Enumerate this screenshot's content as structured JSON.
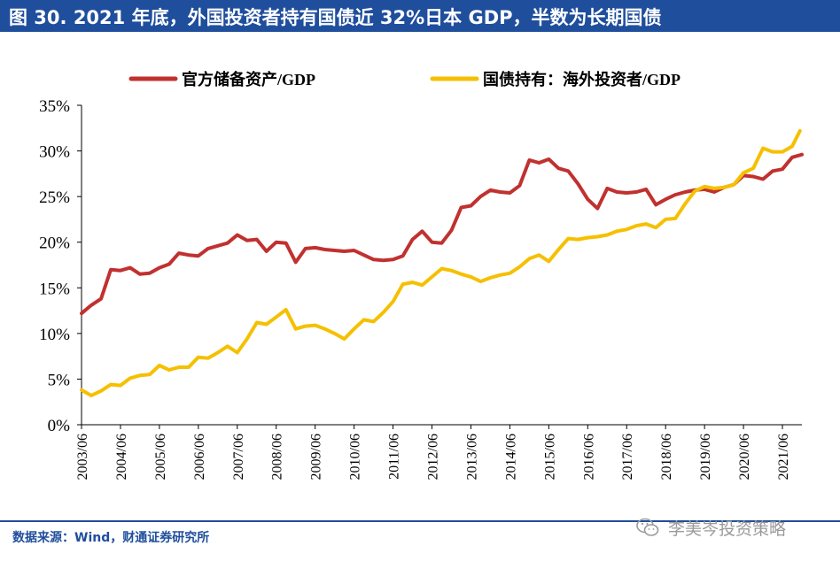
{
  "header": {
    "title": "图 30. 2021 年底，外国投资者持有国债近 32%日本 GDP，半数为长期国债"
  },
  "footer": {
    "source": "数据来源：Wind，财通证券研究所",
    "watermark": "李美岑投资策略"
  },
  "colors": {
    "title_bg": "#1f4e9c",
    "series_red": "#c0312f",
    "series_yellow": "#f5c000"
  },
  "chart_data": {
    "type": "line",
    "title": "",
    "xlabel": "",
    "ylabel": "",
    "ylim": [
      0,
      35
    ],
    "xlim": [
      2003.5,
      2022.0
    ],
    "yticks": [
      0,
      5,
      10,
      15,
      20,
      25,
      30,
      35
    ],
    "ytick_labels": [
      "0%",
      "5%",
      "10%",
      "15%",
      "20%",
      "25%",
      "30%",
      "35%"
    ],
    "xtick_values": [
      2003.5,
      2004.5,
      2005.5,
      2006.5,
      2007.5,
      2008.5,
      2009.5,
      2010.5,
      2011.5,
      2012.5,
      2013.5,
      2014.5,
      2015.5,
      2016.5,
      2017.5,
      2018.5,
      2019.5,
      2020.5,
      2021.5
    ],
    "xtick_labels": [
      "2003/06",
      "2004/06",
      "2005/06",
      "2006/06",
      "2007/06",
      "2008/06",
      "2009/06",
      "2010/06",
      "2011/06",
      "2012/06",
      "2013/06",
      "2014/06",
      "2015/06",
      "2016/06",
      "2017/06",
      "2018/06",
      "2019/06",
      "2020/06",
      "2021/06"
    ],
    "legend_position": "top",
    "series": [
      {
        "name": "官方储备资产/GDP",
        "color": "#c0312f",
        "points": [
          [
            2003.5,
            12.2
          ],
          [
            2003.75,
            13.1
          ],
          [
            2004.0,
            13.8
          ],
          [
            2004.25,
            17.0
          ],
          [
            2004.5,
            16.9
          ],
          [
            2004.75,
            17.2
          ],
          [
            2005.0,
            16.5
          ],
          [
            2005.25,
            16.6
          ],
          [
            2005.5,
            17.2
          ],
          [
            2005.75,
            17.6
          ],
          [
            2006.0,
            18.8
          ],
          [
            2006.25,
            18.6
          ],
          [
            2006.5,
            18.5
          ],
          [
            2006.75,
            19.3
          ],
          [
            2007.0,
            19.6
          ],
          [
            2007.25,
            19.9
          ],
          [
            2007.5,
            20.8
          ],
          [
            2007.75,
            20.2
          ],
          [
            2008.0,
            20.3
          ],
          [
            2008.25,
            19.0
          ],
          [
            2008.5,
            20.0
          ],
          [
            2008.75,
            19.9
          ],
          [
            2009.0,
            17.8
          ],
          [
            2009.25,
            19.3
          ],
          [
            2009.5,
            19.4
          ],
          [
            2009.75,
            19.2
          ],
          [
            2010.0,
            19.1
          ],
          [
            2010.25,
            19.0
          ],
          [
            2010.5,
            19.1
          ],
          [
            2010.75,
            18.6
          ],
          [
            2011.0,
            18.1
          ],
          [
            2011.25,
            18.0
          ],
          [
            2011.5,
            18.1
          ],
          [
            2011.75,
            18.5
          ],
          [
            2012.0,
            20.3
          ],
          [
            2012.25,
            21.2
          ],
          [
            2012.5,
            20.0
          ],
          [
            2012.75,
            19.9
          ],
          [
            2013.0,
            21.3
          ],
          [
            2013.25,
            23.8
          ],
          [
            2013.5,
            24.0
          ],
          [
            2013.75,
            25.0
          ],
          [
            2014.0,
            25.7
          ],
          [
            2014.25,
            25.5
          ],
          [
            2014.5,
            25.4
          ],
          [
            2014.75,
            26.2
          ],
          [
            2015.0,
            29.0
          ],
          [
            2015.25,
            28.7
          ],
          [
            2015.5,
            29.1
          ],
          [
            2015.75,
            28.1
          ],
          [
            2016.0,
            27.8
          ],
          [
            2016.25,
            26.4
          ],
          [
            2016.5,
            24.7
          ],
          [
            2016.75,
            23.7
          ],
          [
            2017.0,
            25.9
          ],
          [
            2017.25,
            25.5
          ],
          [
            2017.5,
            25.4
          ],
          [
            2017.75,
            25.5
          ],
          [
            2018.0,
            25.8
          ],
          [
            2018.25,
            24.1
          ],
          [
            2018.5,
            24.7
          ],
          [
            2018.75,
            25.2
          ],
          [
            2019.0,
            25.5
          ],
          [
            2019.25,
            25.7
          ],
          [
            2019.5,
            25.8
          ],
          [
            2019.75,
            25.5
          ],
          [
            2020.0,
            26.0
          ],
          [
            2020.25,
            26.3
          ],
          [
            2020.5,
            27.3
          ],
          [
            2020.75,
            27.2
          ],
          [
            2021.0,
            26.9
          ],
          [
            2021.25,
            27.8
          ],
          [
            2021.5,
            28.0
          ],
          [
            2021.75,
            29.3
          ],
          [
            2022.0,
            29.6
          ]
        ]
      },
      {
        "name": "国债持有：海外投资者/GDP",
        "color": "#f5c000",
        "points": [
          [
            2003.5,
            3.8
          ],
          [
            2003.75,
            3.2
          ],
          [
            2004.0,
            3.7
          ],
          [
            2004.25,
            4.4
          ],
          [
            2004.5,
            4.3
          ],
          [
            2004.75,
            5.1
          ],
          [
            2005.0,
            5.4
          ],
          [
            2005.25,
            5.5
          ],
          [
            2005.5,
            6.5
          ],
          [
            2005.75,
            6.0
          ],
          [
            2006.0,
            6.3
          ],
          [
            2006.25,
            6.3
          ],
          [
            2006.5,
            7.4
          ],
          [
            2006.75,
            7.3
          ],
          [
            2007.0,
            7.9
          ],
          [
            2007.25,
            8.6
          ],
          [
            2007.5,
            7.9
          ],
          [
            2007.75,
            9.4
          ],
          [
            2008.0,
            11.2
          ],
          [
            2008.25,
            11.0
          ],
          [
            2008.5,
            11.8
          ],
          [
            2008.75,
            12.6
          ],
          [
            2009.0,
            10.5
          ],
          [
            2009.25,
            10.8
          ],
          [
            2009.5,
            10.9
          ],
          [
            2009.75,
            10.5
          ],
          [
            2010.0,
            10.0
          ],
          [
            2010.25,
            9.4
          ],
          [
            2010.5,
            10.5
          ],
          [
            2010.75,
            11.5
          ],
          [
            2011.0,
            11.3
          ],
          [
            2011.25,
            12.3
          ],
          [
            2011.5,
            13.5
          ],
          [
            2011.75,
            15.4
          ],
          [
            2012.0,
            15.6
          ],
          [
            2012.25,
            15.3
          ],
          [
            2012.5,
            16.2
          ],
          [
            2012.75,
            17.1
          ],
          [
            2013.0,
            16.9
          ],
          [
            2013.25,
            16.5
          ],
          [
            2013.5,
            16.2
          ],
          [
            2013.75,
            15.7
          ],
          [
            2014.0,
            16.1
          ],
          [
            2014.25,
            16.4
          ],
          [
            2014.5,
            16.6
          ],
          [
            2014.75,
            17.3
          ],
          [
            2015.0,
            18.2
          ],
          [
            2015.25,
            18.6
          ],
          [
            2015.5,
            17.9
          ],
          [
            2015.75,
            19.2
          ],
          [
            2016.0,
            20.4
          ],
          [
            2016.25,
            20.3
          ],
          [
            2016.5,
            20.5
          ],
          [
            2016.75,
            20.6
          ],
          [
            2017.0,
            20.8
          ],
          [
            2017.25,
            21.2
          ],
          [
            2017.5,
            21.4
          ],
          [
            2017.75,
            21.8
          ],
          [
            2018.0,
            22.0
          ],
          [
            2018.25,
            21.6
          ],
          [
            2018.5,
            22.5
          ],
          [
            2018.75,
            22.6
          ],
          [
            2019.0,
            24.2
          ],
          [
            2019.25,
            25.6
          ],
          [
            2019.5,
            26.1
          ],
          [
            2019.75,
            25.9
          ],
          [
            2020.0,
            26.0
          ],
          [
            2020.25,
            26.3
          ],
          [
            2020.5,
            27.6
          ],
          [
            2020.75,
            28.1
          ],
          [
            2021.0,
            30.3
          ],
          [
            2021.25,
            29.9
          ],
          [
            2021.5,
            29.9
          ],
          [
            2021.75,
            30.5
          ],
          [
            2021.95,
            32.2
          ]
        ]
      }
    ]
  }
}
